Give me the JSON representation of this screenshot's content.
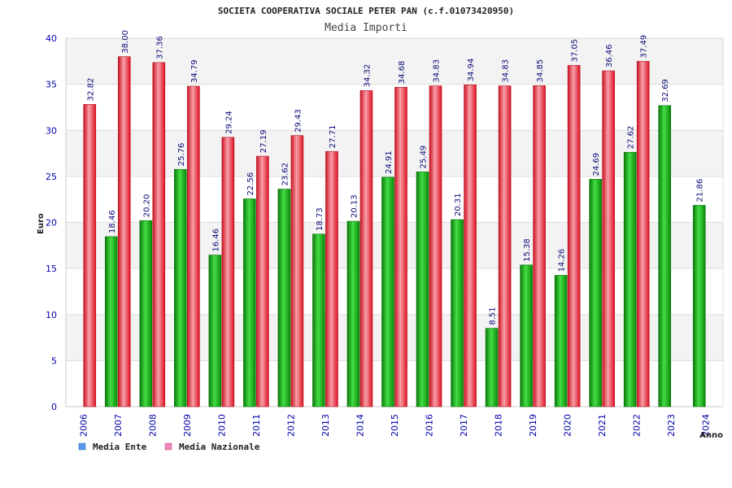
{
  "chart_data": {
    "type": "bar",
    "title": "SOCIETA COOPERATIVA SOCIALE PETER PAN (c.f.01073420950)",
    "subtitle": "Media Importi",
    "xlabel": "Anno",
    "ylabel": "Euro",
    "ylim": [
      0,
      40
    ],
    "yticks": [
      0,
      5,
      10,
      15,
      20,
      25,
      30,
      35,
      40
    ],
    "categories": [
      "2006",
      "2007",
      "2008",
      "2009",
      "2010",
      "2011",
      "2012",
      "2013",
      "2014",
      "2015",
      "2016",
      "2017",
      "2018",
      "2019",
      "2020",
      "2021",
      "2022",
      "2023",
      "2024"
    ],
    "series": [
      {
        "name": "Media Ente",
        "color": "#11aa11",
        "values": [
          null,
          18.46,
          20.2,
          25.76,
          16.46,
          22.56,
          23.62,
          18.73,
          20.13,
          24.91,
          25.49,
          20.31,
          8.51,
          15.38,
          14.26,
          24.69,
          27.62,
          32.69,
          21.86
        ],
        "labels": [
          null,
          "18.46",
          "20.20",
          "25.76",
          "16.46",
          "22.56",
          "23.62",
          "18.73",
          "20.13",
          "24.91",
          "25.49",
          "20.31",
          "8.51",
          "15.38",
          "14.26",
          "24.69",
          "27.62",
          "32.69",
          "21.86"
        ]
      },
      {
        "name": "Media Nazionale",
        "color": "#ee2233",
        "values": [
          32.82,
          38.0,
          37.36,
          34.79,
          29.24,
          27.19,
          29.43,
          27.71,
          34.32,
          34.68,
          34.83,
          34.94,
          34.83,
          34.85,
          37.05,
          36.46,
          37.49,
          null,
          null
        ],
        "labels": [
          "32.82",
          "38.00",
          "37.36",
          "34.79",
          "29.24",
          "27.19",
          "29.43",
          "27.71",
          "34.32",
          "34.68",
          "34.83",
          "34.94",
          "34.83",
          "34.85",
          "37.05",
          "36.46",
          "37.49",
          null,
          null
        ]
      }
    ],
    "legend": [
      {
        "label": "Media Ente",
        "color": "#5599ee"
      },
      {
        "label": "Media Nazionale",
        "color": "#ee88bb"
      }
    ],
    "legend_position": "bottom-left",
    "grid": true
  }
}
